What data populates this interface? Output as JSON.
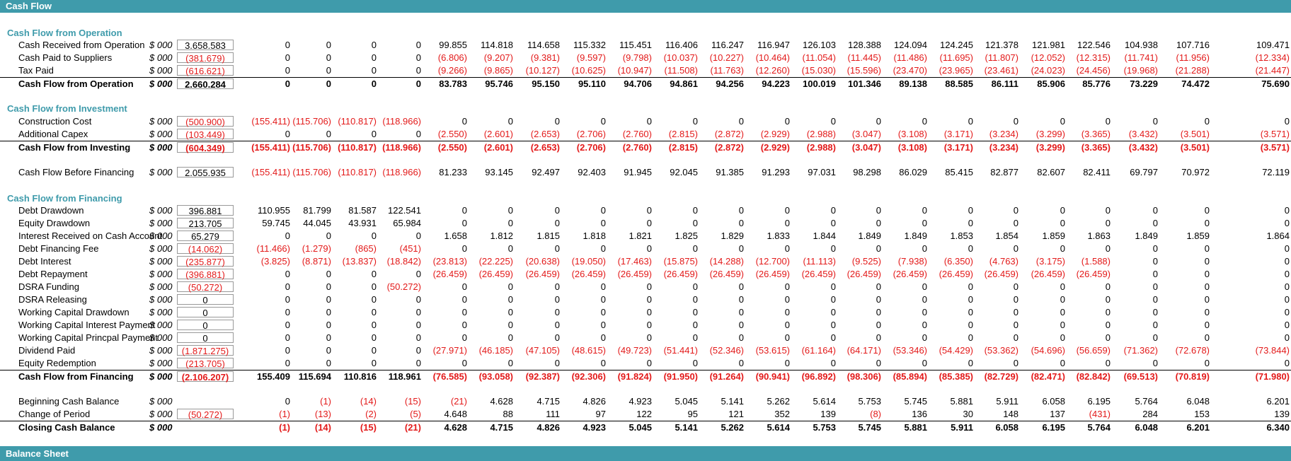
{
  "header": {
    "title": "Cash Flow"
  },
  "footer": {
    "title": "Balance Sheet"
  },
  "sections": {
    "operation": "Cash Flow from Operation",
    "investment": "Cash Flow from Investment",
    "financing": "Cash Flow from Financing"
  },
  "rows": [
    {
      "label": "Cash Received from Operation",
      "unit": "$ 000",
      "total": "3.658.583",
      "values": [
        "0",
        "0",
        "0",
        "0",
        "99.855",
        "114.818",
        "114.658",
        "115.332",
        "115.451",
        "116.406",
        "116.247",
        "116.947",
        "126.103",
        "128.388",
        "124.094",
        "124.245",
        "121.378",
        "121.981",
        "122.546",
        "104.938",
        "107.716",
        "109.471"
      ]
    },
    {
      "label": "Cash Paid to Suppliers",
      "unit": "$ 000",
      "total": "(381.679)",
      "values": [
        "0",
        "0",
        "0",
        "0",
        "(6.806)",
        "(9.207)",
        "(9.381)",
        "(9.597)",
        "(9.798)",
        "(10.037)",
        "(10.227)",
        "(10.464)",
        "(11.054)",
        "(11.445)",
        "(11.486)",
        "(11.695)",
        "(11.807)",
        "(12.052)",
        "(12.315)",
        "(11.741)",
        "(11.956)",
        "(12.334)"
      ]
    },
    {
      "label": "Tax Paid",
      "unit": "$ 000",
      "total": "(616.621)",
      "values": [
        "0",
        "0",
        "0",
        "0",
        "(9.266)",
        "(9.865)",
        "(10.127)",
        "(10.625)",
        "(10.947)",
        "(11.508)",
        "(11.763)",
        "(12.260)",
        "(15.030)",
        "(15.596)",
        "(23.470)",
        "(23.965)",
        "(23.461)",
        "(24.023)",
        "(24.456)",
        "(19.968)",
        "(21.288)",
        "(21.447)"
      ]
    },
    {
      "label": "Cash Flow from Operation",
      "unit": "$ 000",
      "total": "2.660.284",
      "values": [
        "0",
        "0",
        "0",
        "0",
        "83.783",
        "95.746",
        "95.150",
        "95.110",
        "94.706",
        "94.861",
        "94.256",
        "94.223",
        "100.019",
        "101.346",
        "89.138",
        "88.585",
        "86.111",
        "85.906",
        "85.776",
        "73.229",
        "74.472",
        "75.690"
      ]
    },
    {
      "label": "Construction Cost",
      "unit": "$ 000",
      "total": "(500.900)",
      "values": [
        "(155.411)",
        "(115.706)",
        "(110.817)",
        "(118.966)",
        "0",
        "0",
        "0",
        "0",
        "0",
        "0",
        "0",
        "0",
        "0",
        "0",
        "0",
        "0",
        "0",
        "0",
        "0",
        "0",
        "0",
        "0"
      ]
    },
    {
      "label": "Additional Capex",
      "unit": "$ 000",
      "total": "(103.449)",
      "values": [
        "0",
        "0",
        "0",
        "0",
        "(2.550)",
        "(2.601)",
        "(2.653)",
        "(2.706)",
        "(2.760)",
        "(2.815)",
        "(2.872)",
        "(2.929)",
        "(2.988)",
        "(3.047)",
        "(3.108)",
        "(3.171)",
        "(3.234)",
        "(3.299)",
        "(3.365)",
        "(3.432)",
        "(3.501)",
        "(3.571)"
      ]
    },
    {
      "label": "Cash Flow from Investing",
      "unit": "$ 000",
      "total": "(604.349)",
      "values": [
        "(155.411)",
        "(115.706)",
        "(110.817)",
        "(118.966)",
        "(2.550)",
        "(2.601)",
        "(2.653)",
        "(2.706)",
        "(2.760)",
        "(2.815)",
        "(2.872)",
        "(2.929)",
        "(2.988)",
        "(3.047)",
        "(3.108)",
        "(3.171)",
        "(3.234)",
        "(3.299)",
        "(3.365)",
        "(3.432)",
        "(3.501)",
        "(3.571)"
      ]
    },
    {
      "label": "Cash Flow Before Financing",
      "unit": "$ 000",
      "total": "2.055.935",
      "values": [
        "(155.411)",
        "(115.706)",
        "(110.817)",
        "(118.966)",
        "81.233",
        "93.145",
        "92.497",
        "92.403",
        "91.945",
        "92.045",
        "91.385",
        "91.293",
        "97.031",
        "98.298",
        "86.029",
        "85.415",
        "82.877",
        "82.607",
        "82.411",
        "69.797",
        "70.972",
        "72.119"
      ]
    },
    {
      "label": "Debt Drawdown",
      "unit": "$ 000",
      "total": "396.881",
      "values": [
        "110.955",
        "81.799",
        "81.587",
        "122.541",
        "0",
        "0",
        "0",
        "0",
        "0",
        "0",
        "0",
        "0",
        "0",
        "0",
        "0",
        "0",
        "0",
        "0",
        "0",
        "0",
        "0",
        "0"
      ]
    },
    {
      "label": "Equity Drawdown",
      "unit": "$ 000",
      "total": "213.705",
      "values": [
        "59.745",
        "44.045",
        "43.931",
        "65.984",
        "0",
        "0",
        "0",
        "0",
        "0",
        "0",
        "0",
        "0",
        "0",
        "0",
        "0",
        "0",
        "0",
        "0",
        "0",
        "0",
        "0",
        "0"
      ]
    },
    {
      "label": "Interest Received on Cash Account",
      "unit": "$ 000",
      "total": "65.279",
      "values": [
        "0",
        "0",
        "0",
        "0",
        "1.658",
        "1.812",
        "1.815",
        "1.818",
        "1.821",
        "1.825",
        "1.829",
        "1.833",
        "1.844",
        "1.849",
        "1.849",
        "1.853",
        "1.854",
        "1.859",
        "1.863",
        "1.849",
        "1.859",
        "1.864"
      ]
    },
    {
      "label": "Debt Financing Fee",
      "unit": "$ 000",
      "total": "(14.062)",
      "values": [
        "(11.466)",
        "(1.279)",
        "(865)",
        "(451)",
        "0",
        "0",
        "0",
        "0",
        "0",
        "0",
        "0",
        "0",
        "0",
        "0",
        "0",
        "0",
        "0",
        "0",
        "0",
        "0",
        "0",
        "0"
      ]
    },
    {
      "label": "Debt Interest",
      "unit": "$ 000",
      "total": "(235.877)",
      "values": [
        "(3.825)",
        "(8.871)",
        "(13.837)",
        "(18.842)",
        "(23.813)",
        "(22.225)",
        "(20.638)",
        "(19.050)",
        "(17.463)",
        "(15.875)",
        "(14.288)",
        "(12.700)",
        "(11.113)",
        "(9.525)",
        "(7.938)",
        "(6.350)",
        "(4.763)",
        "(3.175)",
        "(1.588)",
        "0",
        "0",
        "0"
      ]
    },
    {
      "label": "Debt Repayment",
      "unit": "$ 000",
      "total": "(396.881)",
      "values": [
        "0",
        "0",
        "0",
        "0",
        "(26.459)",
        "(26.459)",
        "(26.459)",
        "(26.459)",
        "(26.459)",
        "(26.459)",
        "(26.459)",
        "(26.459)",
        "(26.459)",
        "(26.459)",
        "(26.459)",
        "(26.459)",
        "(26.459)",
        "(26.459)",
        "(26.459)",
        "0",
        "0",
        "0"
      ]
    },
    {
      "label": "DSRA Funding",
      "unit": "$ 000",
      "total": "(50.272)",
      "values": [
        "0",
        "0",
        "0",
        "(50.272)",
        "0",
        "0",
        "0",
        "0",
        "0",
        "0",
        "0",
        "0",
        "0",
        "0",
        "0",
        "0",
        "0",
        "0",
        "0",
        "0",
        "0",
        "0"
      ]
    },
    {
      "label": "DSRA Releasing",
      "unit": "$ 000",
      "total": "0",
      "values": [
        "0",
        "0",
        "0",
        "0",
        "0",
        "0",
        "0",
        "0",
        "0",
        "0",
        "0",
        "0",
        "0",
        "0",
        "0",
        "0",
        "0",
        "0",
        "0",
        "0",
        "0",
        "0"
      ]
    },
    {
      "label": "Working Capital Drawdown",
      "unit": "$ 000",
      "total": "0",
      "values": [
        "0",
        "0",
        "0",
        "0",
        "0",
        "0",
        "0",
        "0",
        "0",
        "0",
        "0",
        "0",
        "0",
        "0",
        "0",
        "0",
        "0",
        "0",
        "0",
        "0",
        "0",
        "0"
      ]
    },
    {
      "label": "Working Capital Interest Payment",
      "unit": "$ 000",
      "total": "0",
      "values": [
        "0",
        "0",
        "0",
        "0",
        "0",
        "0",
        "0",
        "0",
        "0",
        "0",
        "0",
        "0",
        "0",
        "0",
        "0",
        "0",
        "0",
        "0",
        "0",
        "0",
        "0",
        "0"
      ]
    },
    {
      "label": "Working Capital Princpal Payment",
      "unit": "$ 000",
      "total": "0",
      "values": [
        "0",
        "0",
        "0",
        "0",
        "0",
        "0",
        "0",
        "0",
        "0",
        "0",
        "0",
        "0",
        "0",
        "0",
        "0",
        "0",
        "0",
        "0",
        "0",
        "0",
        "0",
        "0"
      ]
    },
    {
      "label": "Dividend Paid",
      "unit": "$ 000",
      "total": "(1.871.275)",
      "values": [
        "0",
        "0",
        "0",
        "0",
        "(27.971)",
        "(46.185)",
        "(47.105)",
        "(48.615)",
        "(49.723)",
        "(51.441)",
        "(52.346)",
        "(53.615)",
        "(61.164)",
        "(64.171)",
        "(53.346)",
        "(54.429)",
        "(53.362)",
        "(54.696)",
        "(56.659)",
        "(71.362)",
        "(72.678)",
        "(73.844)"
      ]
    },
    {
      "label": "Equity Redemption",
      "unit": "$ 000",
      "total": "(213.705)",
      "values": [
        "0",
        "0",
        "0",
        "0",
        "0",
        "0",
        "0",
        "0",
        "0",
        "0",
        "0",
        "0",
        "0",
        "0",
        "0",
        "0",
        "0",
        "0",
        "0",
        "0",
        "0",
        "0"
      ]
    },
    {
      "label": "Cash Flow from Financing",
      "unit": "$ 000",
      "total": "(2.106.207)",
      "values": [
        "155.409",
        "115.694",
        "110.816",
        "118.961",
        "(76.585)",
        "(93.058)",
        "(92.387)",
        "(92.306)",
        "(91.824)",
        "(91.950)",
        "(91.264)",
        "(90.941)",
        "(96.892)",
        "(98.306)",
        "(85.894)",
        "(85.385)",
        "(82.729)",
        "(82.471)",
        "(82.842)",
        "(69.513)",
        "(70.819)",
        "(71.980)"
      ]
    },
    {
      "label": "Beginning Cash Balance",
      "unit": "$ 000",
      "total": "",
      "values": [
        "0",
        "(1)",
        "(14)",
        "(15)",
        "(21)",
        "4.628",
        "4.715",
        "4.826",
        "4.923",
        "5.045",
        "5.141",
        "5.262",
        "5.614",
        "5.753",
        "5.745",
        "5.881",
        "5.911",
        "6.058",
        "6.195",
        "5.764",
        "6.048",
        "6.201"
      ]
    },
    {
      "label": "Change of Period",
      "unit": "$ 000",
      "total": "(50.272)",
      "values": [
        "(1)",
        "(13)",
        "(2)",
        "(5)",
        "4.648",
        "88",
        "111",
        "97",
        "122",
        "95",
        "121",
        "352",
        "139",
        "(8)",
        "136",
        "30",
        "148",
        "137",
        "(431)",
        "284",
        "153",
        "139"
      ]
    },
    {
      "label": "Closing Cash Balance",
      "unit": "$ 000",
      "total": "",
      "values": [
        "(1)",
        "(14)",
        "(15)",
        "(21)",
        "4.628",
        "4.715",
        "4.826",
        "4.923",
        "5.045",
        "5.141",
        "5.262",
        "5.614",
        "5.753",
        "5.745",
        "5.881",
        "5.911",
        "6.058",
        "6.195",
        "5.764",
        "6.048",
        "6.201",
        "6.340"
      ]
    }
  ]
}
